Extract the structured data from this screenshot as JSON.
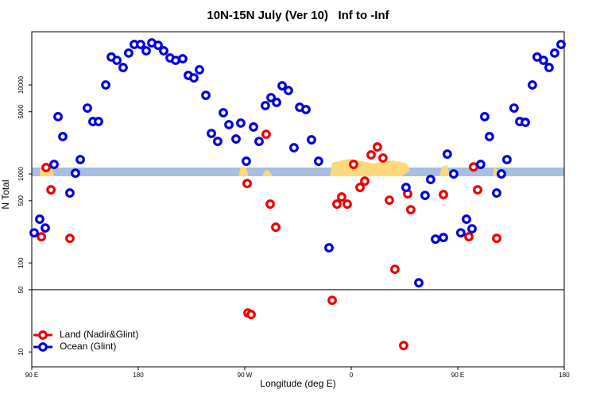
{
  "chart_data": {
    "type": "scatter",
    "title": "10N-15N July (Ver 10)   Inf to -Inf",
    "xlabel": "Longitude (deg E)",
    "ylabel": "N Total",
    "xlim": [
      90,
      540
    ],
    "xticks": [
      {
        "value": 90,
        "label": "90 E"
      },
      180,
      {
        "value": 270,
        "label": "90 W"
      },
      {
        "value": 360,
        "label": "0"
      },
      {
        "value": 450,
        "label": "90 E"
      },
      {
        "value": 540,
        "label": "180"
      }
    ],
    "ylim": [
      6.8,
      39600
    ],
    "yticks": [
      10,
      50,
      100,
      500,
      1000,
      5000,
      10000
    ],
    "log_y": true,
    "reference_line": 50,
    "legend": "lower left",
    "series": [
      {
        "name": "Land (Nadir&Glint)",
        "color": "#ee0000",
        "x": [
          98.1,
          102.1,
          106.2,
          122.2,
          272.0,
          272.7,
          275.4,
          288.1,
          291.5,
          296.2,
          343.9,
          347.9,
          351.9,
          356.6,
          362.0,
          367.4,
          371.4,
          376.8,
          382.1,
          386.8,
          392.2,
          396.9,
          404.3,
          407.7,
          410.3,
          437.9,
          459.4,
          463.4,
          466.8,
          482.9
        ],
        "values": [
          197,
          1180,
          663,
          189,
          781,
          27.4,
          26.3,
          2790,
          458,
          252,
          38.0,
          458,
          551,
          458,
          1280,
          705,
          831,
          1640,
          2010,
          1510,
          507,
          84.9,
          11.8,
          598,
          396,
          587,
          197,
          1200,
          663,
          189
        ]
      },
      {
        "name": "Ocean (Glint)",
        "color": "#0000dd",
        "x": [
          92.0,
          96.7,
          101.4,
          108.8,
          112.2,
          116.2,
          122.2,
          126.9,
          131.0,
          137.0,
          141.7,
          146.4,
          152.5,
          157.2,
          161.9,
          167.2,
          171.9,
          176.6,
          182.0,
          186.7,
          191.4,
          196.8,
          201.5,
          206.9,
          211.6,
          217.6,
          222.3,
          227.0,
          231.7,
          237.1,
          241.8,
          247.1,
          251.9,
          256.6,
          262.6,
          266.6,
          271.3,
          277.4,
          282.1,
          287.4,
          292.2,
          296.9,
          301.6,
          306.9,
          311.6,
          316.4,
          321.7,
          326.4,
          332.4,
          341.2,
          406.3,
          417.1,
          422.4,
          427.1,
          431.2,
          437.9,
          441.2,
          446.6,
          452.6,
          457.4,
          462.1,
          469.4,
          472.8,
          476.8,
          482.9,
          486.9,
          491.6,
          497.6,
          502.4,
          507.1,
          513.1,
          517.1,
          522.5,
          527.2,
          531.9,
          537.3
        ],
        "values": [
          218,
          310,
          247,
          1280,
          4400,
          2630,
          611,
          1020,
          1450,
          5500,
          3880,
          3880,
          10000,
          20600,
          18900,
          15700,
          22800,
          28500,
          28500,
          24200,
          29700,
          27900,
          24200,
          20100,
          18900,
          19700,
          12800,
          12000,
          14800,
          7650,
          2850,
          2320,
          4870,
          3580,
          2470,
          3730,
          1390,
          3370,
          2320,
          5860,
          7200,
          6370,
          9790,
          8660,
          1970,
          5620,
          5290,
          2420,
          1390,
          148,
          705,
          59.8,
          574,
          866,
          185,
          193,
          1670,
          1000,
          218,
          310,
          242,
          1280,
          4400,
          2630,
          611,
          1000,
          1450,
          5500,
          3880,
          3800,
          10000,
          20600,
          18900,
          15700,
          22800,
          28500
        ]
      }
    ]
  }
}
